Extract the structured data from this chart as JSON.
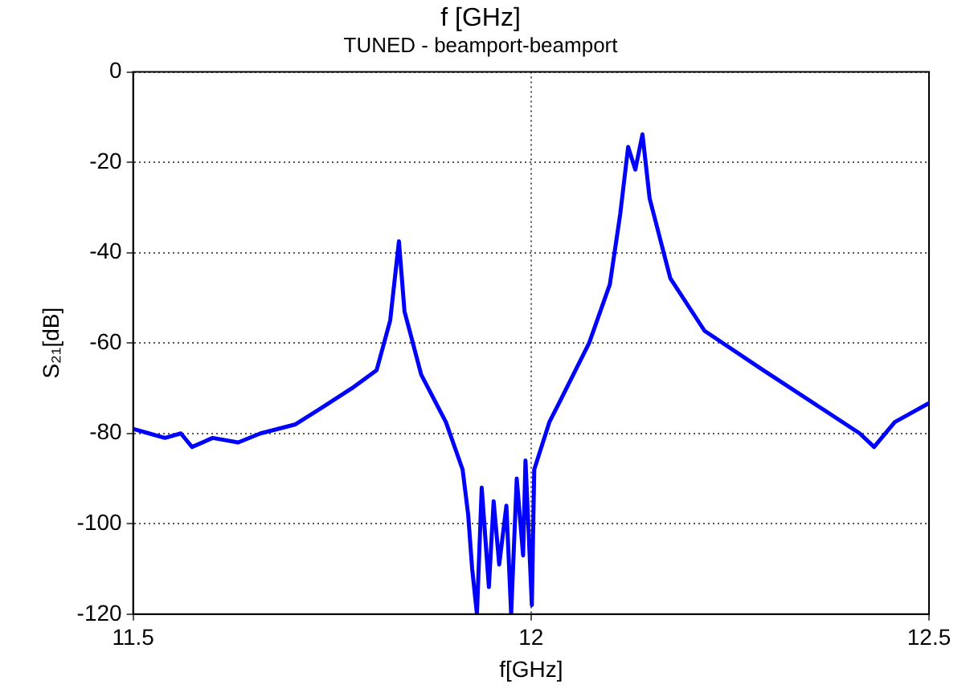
{
  "chart_data": {
    "type": "line",
    "title": "f [GHz]",
    "subtitle": "TUNED - beamport-beamport",
    "xlabel": "f[GHz]",
    "ylabel": "S₂₁[dB]",
    "xlim": [
      11.5,
      12.5
    ],
    "ylim": [
      -120,
      0
    ],
    "xticks": [
      11.5,
      12,
      12.5
    ],
    "yticks": [
      -120,
      -100,
      -80,
      -60,
      -40,
      -20,
      0
    ],
    "grid": true,
    "line_style": "solid",
    "marker": "none",
    "x": [
      11.5,
      11.52,
      11.54,
      11.56,
      11.574,
      11.6,
      11.632,
      11.66,
      11.704,
      11.74,
      11.775,
      11.806,
      11.823,
      11.834,
      11.841,
      11.862,
      11.893,
      11.914,
      11.921,
      11.926,
      11.932,
      11.938,
      11.947,
      11.953,
      11.96,
      11.969,
      11.975,
      11.982,
      11.99,
      11.993,
      12.001,
      12.004,
      12.023,
      12.036,
      12.073,
      12.099,
      12.112,
      12.122,
      12.131,
      12.14,
      12.149,
      12.175,
      12.218,
      12.29,
      12.361,
      12.413,
      12.431,
      12.457,
      12.5
    ],
    "series": [
      {
        "color": "#0000ff",
        "values": [
          -79,
          -80,
          -81,
          -80,
          -83,
          -81,
          -82,
          -80,
          -78,
          -74,
          -70,
          -66,
          -55,
          -37.5,
          -53,
          -67,
          -77.5,
          -88,
          -98,
          -110,
          -120,
          -92,
          -114,
          -95,
          -109,
          -96,
          -120,
          -90,
          -107,
          -86,
          -118,
          -88,
          -77.5,
          -73,
          -60,
          -47,
          -31.5,
          -16.6,
          -21.6,
          -13.8,
          -28,
          -45.7,
          -57.3,
          -65.8,
          -74,
          -80,
          -83,
          -77.5,
          -73.3
        ]
      }
    ]
  }
}
